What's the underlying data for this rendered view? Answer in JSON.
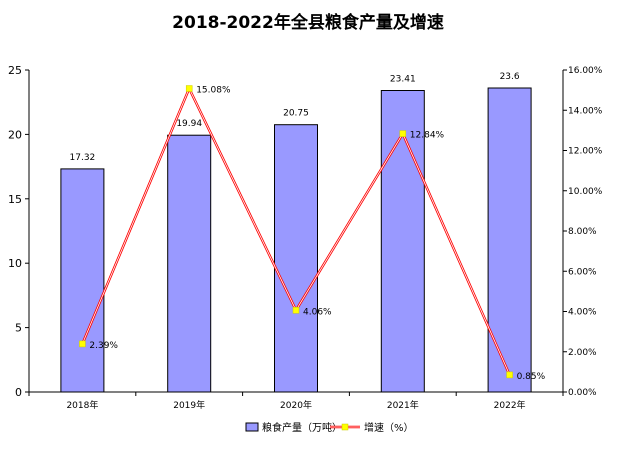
{
  "chart_data": {
    "type": "bar",
    "title": "2018-2022年全县粮食产量及增速",
    "categories": [
      "2018年",
      "2019年",
      "2020年",
      "2021年",
      "2022年"
    ],
    "series": [
      {
        "name": "粮食产量（万吨）",
        "type": "bar",
        "axis": "left",
        "values": [
          17.32,
          19.94,
          20.75,
          23.41,
          23.6
        ],
        "labels": [
          "17.32",
          "19.94",
          "20.75",
          "23.41",
          "23.6"
        ],
        "color": "#9999ff"
      },
      {
        "name": "增速（%）",
        "type": "line",
        "axis": "right",
        "values": [
          2.39,
          15.08,
          4.06,
          12.84,
          0.85
        ],
        "labels": [
          "2.39%",
          "15.08%",
          "4.06%",
          "12.84%",
          "0.85%"
        ],
        "line_color": "#ff0000",
        "marker_color": "#ffff00"
      }
    ],
    "y_left": {
      "min": 0,
      "max": 25,
      "step": 5,
      "ticks": [
        "0",
        "5",
        "10",
        "15",
        "20",
        "25"
      ]
    },
    "y_right": {
      "min": 0,
      "max": 16,
      "step": 2,
      "ticks": [
        "0.00%",
        "2.00%",
        "4.00%",
        "6.00%",
        "8.00%",
        "10.00%",
        "12.00%",
        "14.00%",
        "16.00%"
      ]
    },
    "grid": false,
    "legend_position": "bottom"
  }
}
